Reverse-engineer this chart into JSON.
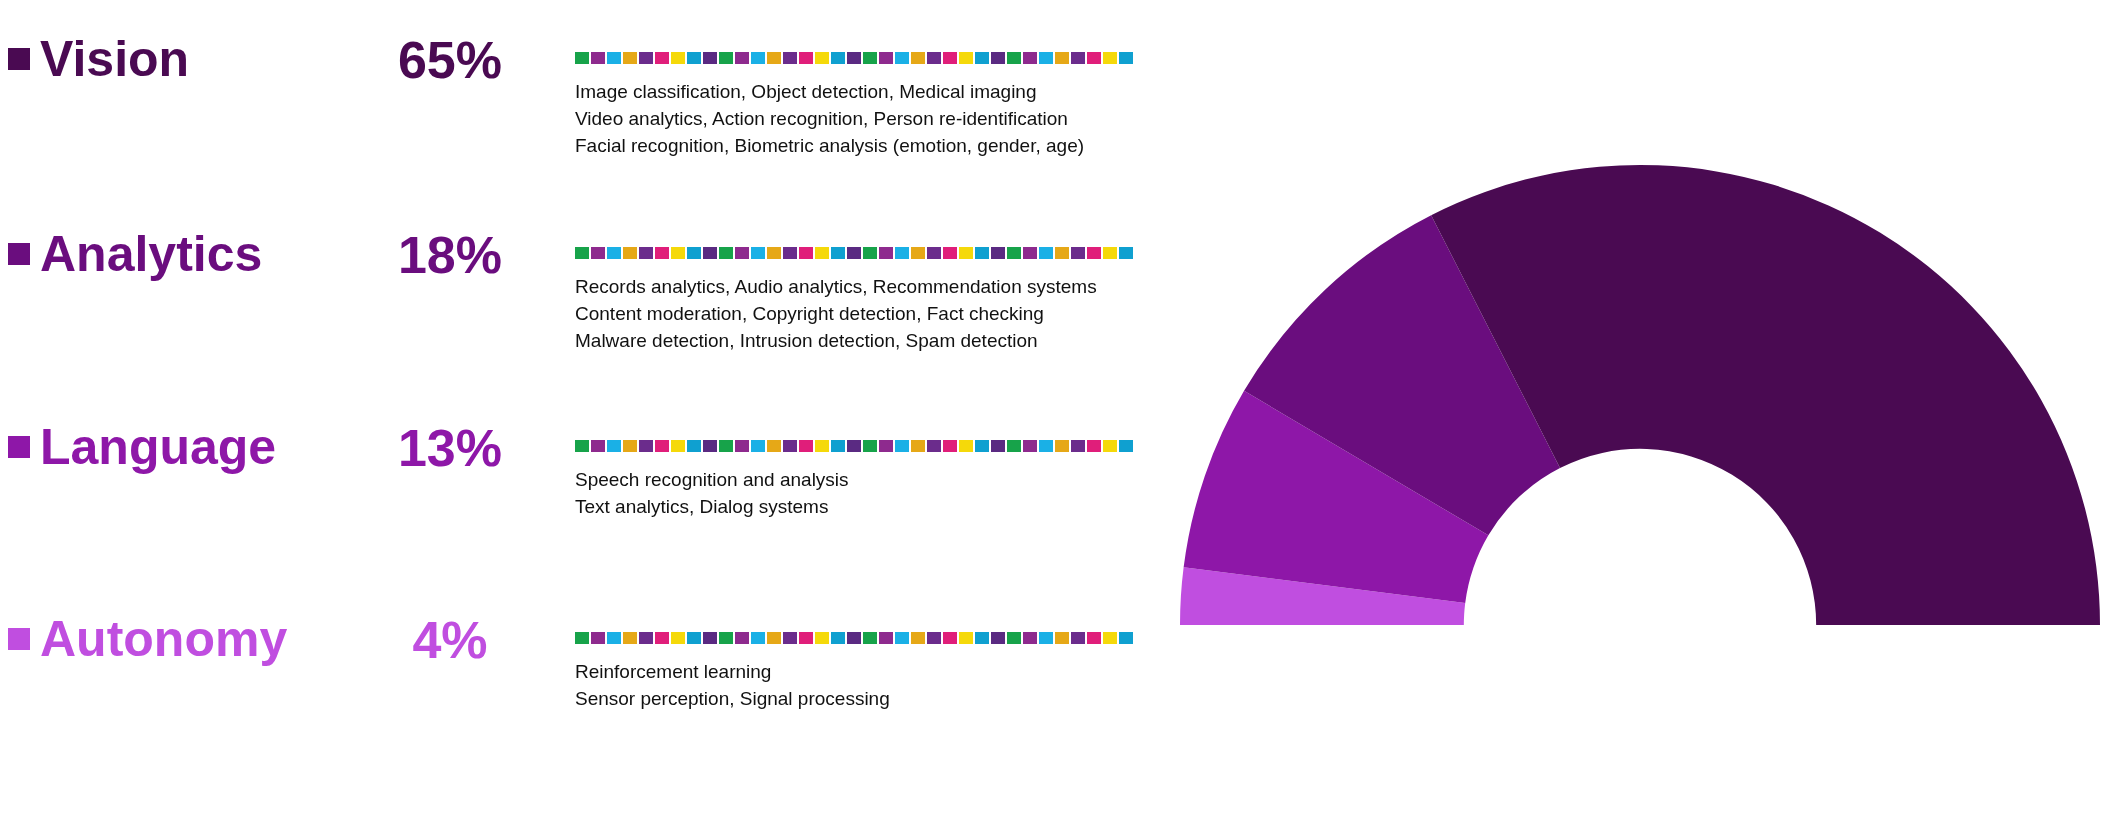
{
  "chart_data": {
    "type": "donut",
    "categories": [
      "Vision",
      "Analytics",
      "Language",
      "Autonomy"
    ],
    "values": [
      65,
      18,
      13,
      4
    ],
    "value_labels": [
      "65%",
      "18%",
      "13%",
      "4%"
    ],
    "colors": [
      "#4a0a52",
      "#6a0d7e",
      "#8e17a8",
      "#c04ee0"
    ],
    "legend": "left",
    "annotations": [
      "Image classification, Object detection, Medical imaging\nVideo analytics, Action recognition, Person re-identification\nFacial recognition, Biometric analysis (emotion, gender, age)",
      "Records analytics, Audio analytics, Recommendation systems\nContent moderation, Copyright detection, Fact checking\nMalware detection, Intrusion detection, Spam detection",
      "Speech recognition and analysis\nText analytics, Dialog systems",
      "Reinforcement learning\nSensor perception, Signal processing"
    ]
  }
}
